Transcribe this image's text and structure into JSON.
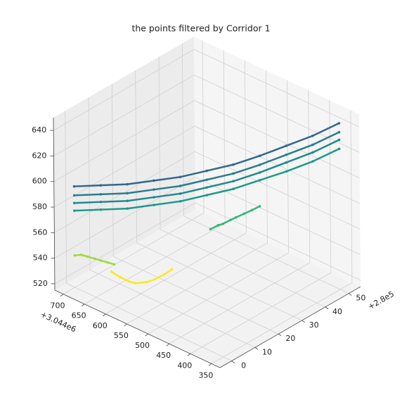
{
  "chart_data": {
    "type": "scatter3d",
    "title": "the points filtered by Corridor 1",
    "x_offset_label": "+2.8e5",
    "y_offset_label": "+3.044e6",
    "xlim": [
      -5,
      55
    ],
    "xticks": [
      0,
      10,
      20,
      30,
      40,
      50
    ],
    "ylim": [
      330,
      720
    ],
    "yticks": [
      350,
      400,
      450,
      500,
      550,
      600,
      650,
      700
    ],
    "zlim": [
      515,
      650
    ],
    "zticks": [
      520,
      540,
      560,
      580,
      600,
      620,
      640
    ],
    "grid": true,
    "series": [
      {
        "color": "#31688e",
        "x": [
          0,
          5,
          10,
          15,
          20,
          25,
          30,
          35,
          40,
          45,
          50
        ],
        "y": [
          700,
          665,
          630,
          595,
          560,
          525,
          490,
          455,
          420,
          385,
          350
        ],
        "z": [
          594,
          595,
          596,
          599,
          602,
          607,
          612,
          619,
          627,
          635,
          645
        ]
      },
      {
        "color": "#2c7c8e",
        "x": [
          0,
          5,
          10,
          15,
          20,
          25,
          30,
          35,
          40,
          45,
          50
        ],
        "y": [
          700,
          665,
          630,
          595,
          560,
          525,
          490,
          455,
          420,
          385,
          350
        ],
        "z": [
          587,
          588,
          589,
          592,
          595,
          600,
          605,
          612,
          620,
          628,
          638
        ]
      },
      {
        "color": "#23898e",
        "x": [
          0,
          5,
          10,
          15,
          20,
          25,
          30,
          35,
          40,
          45,
          50
        ],
        "y": [
          700,
          665,
          630,
          595,
          560,
          525,
          490,
          455,
          420,
          385,
          350
        ],
        "z": [
          581,
          582,
          583,
          586,
          589,
          594,
          599,
          606,
          614,
          622,
          632
        ]
      },
      {
        "color": "#1f9a8a",
        "x": [
          0,
          5,
          10,
          15,
          20,
          25,
          30,
          35,
          40,
          45,
          50
        ],
        "y": [
          700,
          665,
          630,
          595,
          560,
          525,
          490,
          455,
          420,
          385,
          350
        ],
        "z": [
          575,
          576,
          577,
          580,
          583,
          588,
          593,
          600,
          607,
          615,
          625
        ]
      },
      {
        "color": "#35b779",
        "x": [
          30,
          32,
          33,
          35,
          36,
          38,
          40,
          42
        ],
        "y": [
          545,
          538,
          532,
          525,
          518,
          510,
          502,
          495
        ],
        "z": [
          553,
          555,
          556,
          558,
          560,
          562,
          564,
          566
        ]
      },
      {
        "color": "#a0da39",
        "x": [
          0,
          1,
          2,
          3,
          4,
          5,
          6
        ],
        "y": [
          700,
          690,
          680,
          670,
          660,
          650,
          640
        ],
        "z": [
          540,
          541,
          540,
          539,
          538,
          537,
          536
        ]
      },
      {
        "color": "#fde725",
        "x": [
          3,
          4,
          5,
          6,
          8,
          10,
          12,
          14
        ],
        "y": [
          630,
          615,
          600,
          590,
          575,
          565,
          555,
          548
        ],
        "z": [
          535,
          532,
          530,
          529,
          530,
          532,
          535,
          538
        ]
      }
    ]
  }
}
